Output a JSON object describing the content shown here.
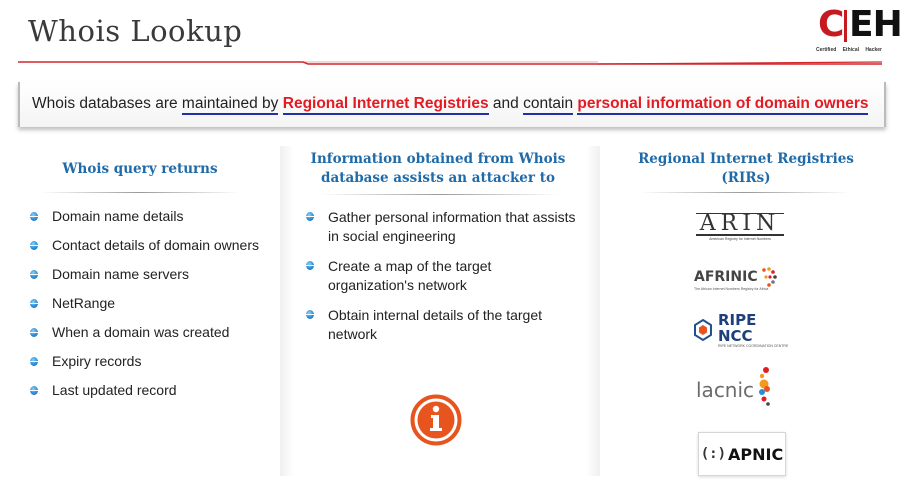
{
  "header": {
    "title": "Whois Lookup",
    "logo": {
      "letter_c": "C",
      "letters_eh": "EH",
      "sub": [
        "Certified",
        "Ethical",
        "Hacker"
      ]
    }
  },
  "banner": {
    "parts": [
      "Whois databases are ",
      "maintained by",
      " ",
      "Regional Internet Registries",
      " and ",
      "contain",
      " ",
      "personal information of domain owners"
    ]
  },
  "columns": {
    "left": {
      "heading": "Whois query returns",
      "items": [
        "Domain name details",
        "Contact details of domain owners",
        "Domain name servers",
        "NetRange",
        "When a domain was created",
        "Expiry records",
        "Last updated record"
      ]
    },
    "middle": {
      "heading": [
        "Information obtained from Whois",
        "database assists an attacker to"
      ],
      "items": [
        [
          "Gather personal information that assists",
          "in social engineering"
        ],
        [
          "Create a map of the target",
          "organization's network"
        ],
        [
          "Obtain internal details of the target",
          "network"
        ]
      ],
      "icon": "info-icon"
    },
    "right": {
      "heading": [
        "Regional Internet Registries",
        "(RIRs)"
      ],
      "logos": [
        {
          "name": "ARIN",
          "tagline": "American Registry for Internet Numbers"
        },
        {
          "name": "AFRINIC",
          "tagline": "The African Internet Numbers Registry for Africa"
        },
        {
          "name": "RIPE NCC",
          "tagline": "RIPE NETWORK COORDINATION CENTRE"
        },
        {
          "name": "lacnic"
        },
        {
          "name": "APNIC"
        }
      ]
    }
  },
  "colors": {
    "accent_red": "#e31b23",
    "underline_blue": "#2230a8",
    "heading_blue": "#1f6aa8",
    "icon_orange": "#e8541e"
  }
}
